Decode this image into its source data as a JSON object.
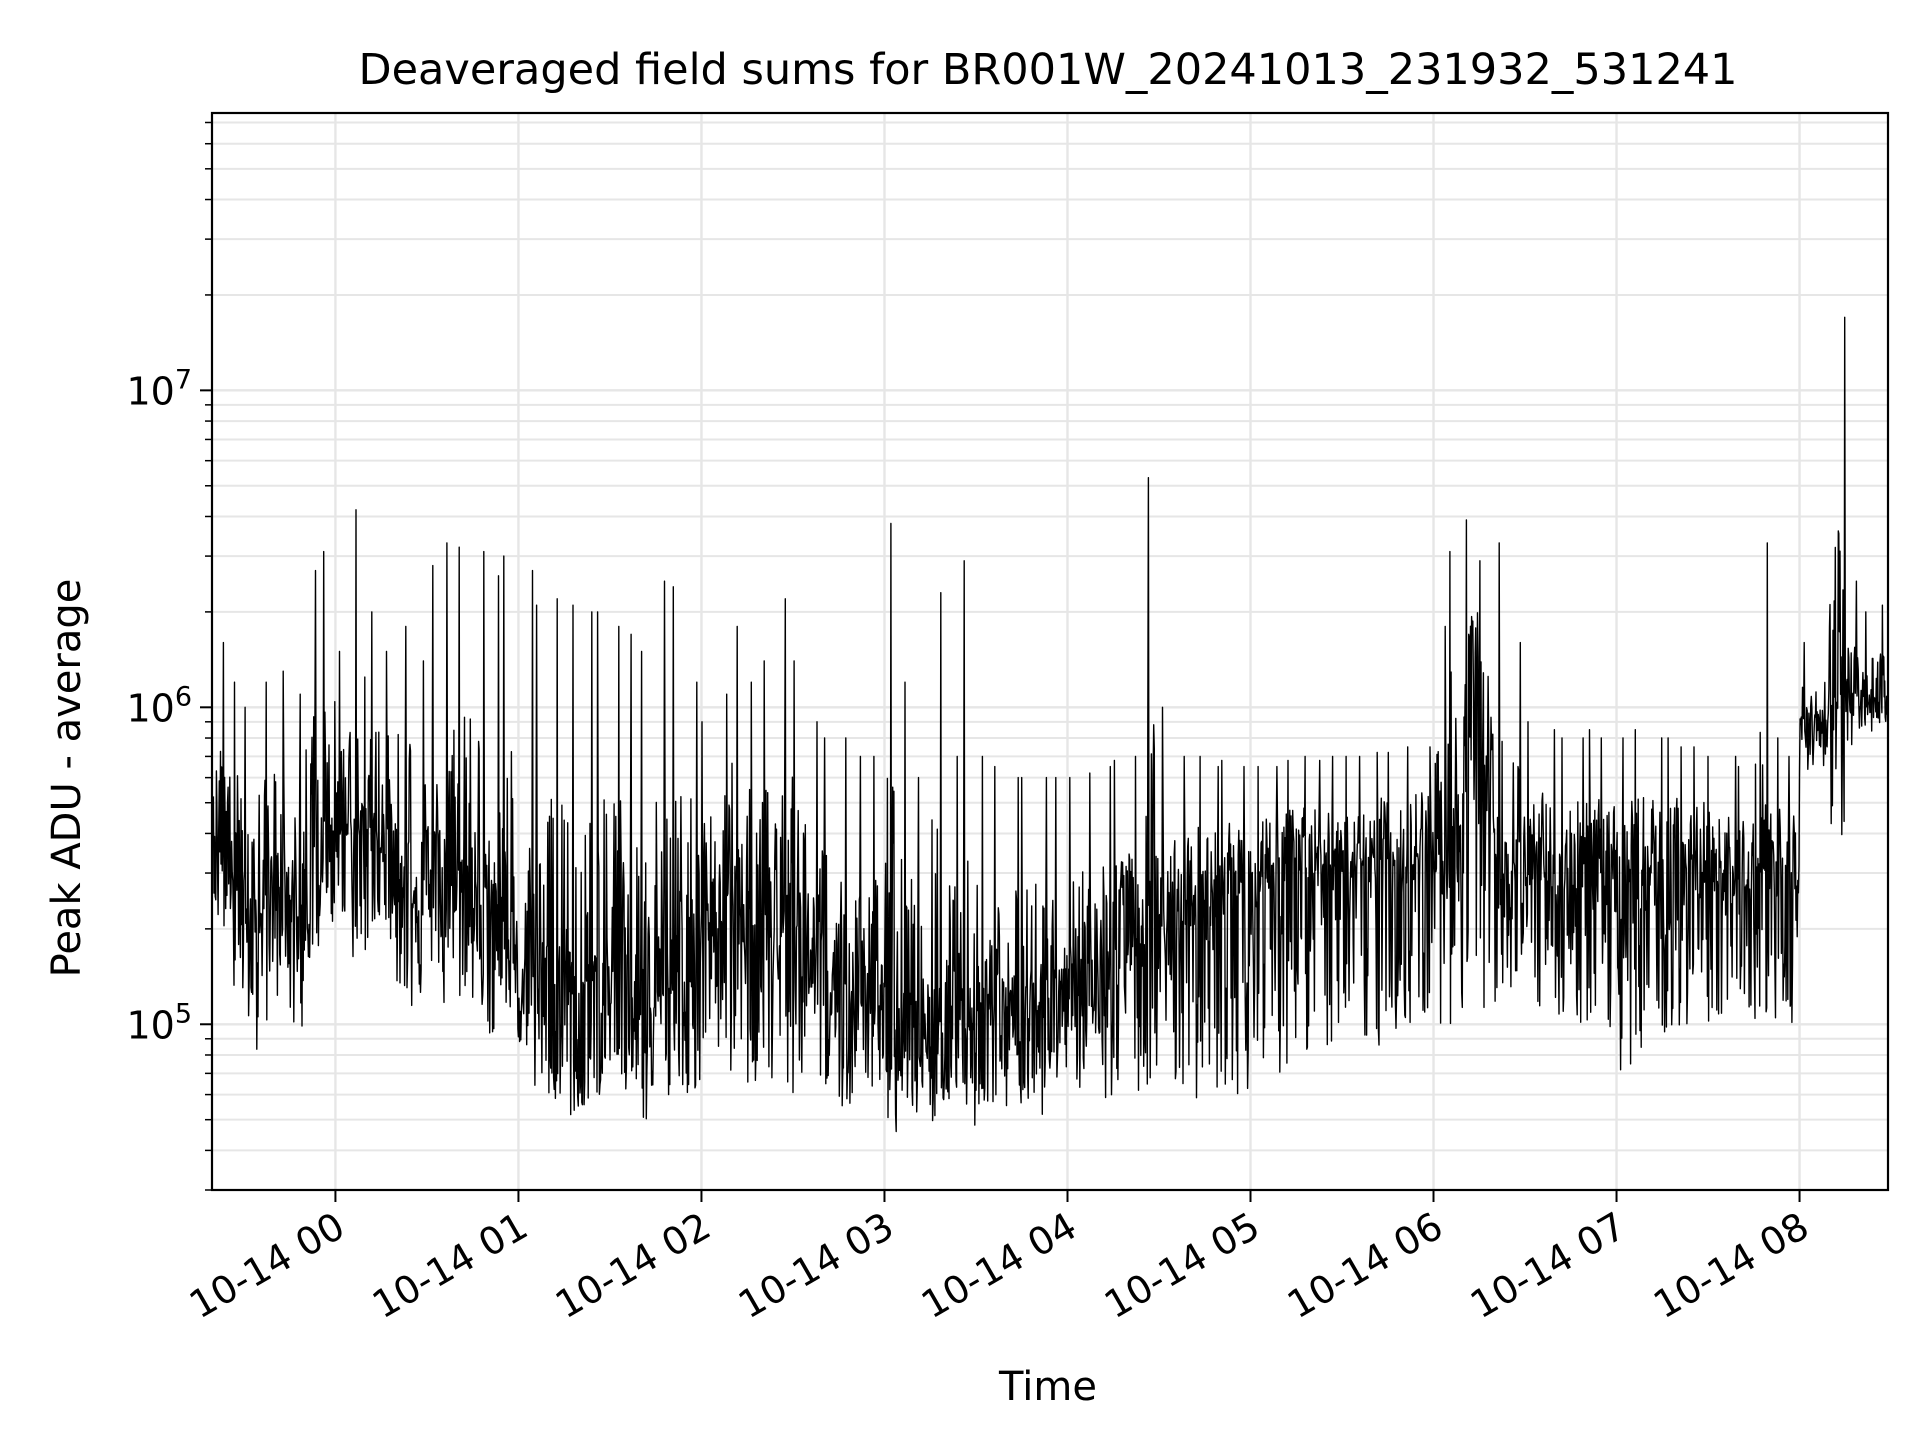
{
  "chart_data": {
    "type": "line",
    "title": "Deaveraged field sums for BR001W_20241013_231932_531241",
    "xlabel": "Time",
    "ylabel": "Peak ADU - average",
    "yscale": "log",
    "grid": true,
    "legend": "none",
    "line_color": "#000000",
    "grid_color": "#e6e6e6",
    "xlim": [
      "2024-10-13T23:19:32",
      "2024-10-14T08:29:00"
    ],
    "ylim": [
      30000,
      75000000
    ],
    "x_ticks": [
      {
        "t": "2024-10-14T00:00",
        "label": "10-14 00"
      },
      {
        "t": "2024-10-14T01:00",
        "label": "10-14 01"
      },
      {
        "t": "2024-10-14T02:00",
        "label": "10-14 02"
      },
      {
        "t": "2024-10-14T03:00",
        "label": "10-14 03"
      },
      {
        "t": "2024-10-14T04:00",
        "label": "10-14 04"
      },
      {
        "t": "2024-10-14T05:00",
        "label": "10-14 05"
      },
      {
        "t": "2024-10-14T06:00",
        "label": "10-14 06"
      },
      {
        "t": "2024-10-14T07:00",
        "label": "10-14 07"
      },
      {
        "t": "2024-10-14T08:00",
        "label": "10-14 08"
      }
    ],
    "y_ticks": [
      {
        "value": 100000,
        "base": "10",
        "exp": "5"
      },
      {
        "value": 1000000,
        "base": "10",
        "exp": "6"
      },
      {
        "value": 10000000,
        "base": "10",
        "exp": "7"
      }
    ],
    "series": [
      {
        "x": [
          "2024-10-13T23:20",
          "2024-10-13T23:25",
          "2024-10-13T23:30",
          "2024-10-13T23:35",
          "2024-10-13T23:40",
          "2024-10-13T23:45",
          "2024-10-13T23:50",
          "2024-10-13T23:55",
          "2024-10-14T00:00",
          "2024-10-14T00:05",
          "2024-10-14T00:10",
          "2024-10-14T00:15",
          "2024-10-14T00:20",
          "2024-10-14T00:25",
          "2024-10-14T00:30",
          "2024-10-14T00:35",
          "2024-10-14T00:40",
          "2024-10-14T00:45",
          "2024-10-14T00:50",
          "2024-10-14T00:55",
          "2024-10-14T01:00",
          "2024-10-14T01:05",
          "2024-10-14T01:10",
          "2024-10-14T01:15",
          "2024-10-14T01:20",
          "2024-10-14T01:25",
          "2024-10-14T01:30",
          "2024-10-14T01:35",
          "2024-10-14T01:40",
          "2024-10-14T01:45",
          "2024-10-14T01:50",
          "2024-10-14T01:55",
          "2024-10-14T02:00",
          "2024-10-14T02:05",
          "2024-10-14T02:10",
          "2024-10-14T02:15",
          "2024-10-14T02:20",
          "2024-10-14T02:25",
          "2024-10-14T02:30",
          "2024-10-14T02:35",
          "2024-10-14T02:40",
          "2024-10-14T02:45",
          "2024-10-14T02:50",
          "2024-10-14T02:55",
          "2024-10-14T03:00",
          "2024-10-14T03:05",
          "2024-10-14T03:10",
          "2024-10-14T03:15",
          "2024-10-14T03:20",
          "2024-10-14T03:25",
          "2024-10-14T03:30",
          "2024-10-14T03:35",
          "2024-10-14T03:40",
          "2024-10-14T03:45",
          "2024-10-14T03:50",
          "2024-10-14T03:55",
          "2024-10-14T04:00",
          "2024-10-14T04:05",
          "2024-10-14T04:10",
          "2024-10-14T04:15",
          "2024-10-14T04:20",
          "2024-10-14T04:25",
          "2024-10-14T04:30",
          "2024-10-14T04:35",
          "2024-10-14T04:40",
          "2024-10-14T04:45",
          "2024-10-14T04:50",
          "2024-10-14T04:55",
          "2024-10-14T05:00",
          "2024-10-14T05:05",
          "2024-10-14T05:10",
          "2024-10-14T05:15",
          "2024-10-14T05:20",
          "2024-10-14T05:25",
          "2024-10-14T05:30",
          "2024-10-14T05:35",
          "2024-10-14T05:40",
          "2024-10-14T05:45",
          "2024-10-14T05:50",
          "2024-10-14T05:55",
          "2024-10-14T06:00",
          "2024-10-14T06:05",
          "2024-10-14T06:10",
          "2024-10-14T06:15",
          "2024-10-14T06:20",
          "2024-10-14T06:25",
          "2024-10-14T06:30",
          "2024-10-14T06:35",
          "2024-10-14T06:40",
          "2024-10-14T06:45",
          "2024-10-14T06:50",
          "2024-10-14T06:55",
          "2024-10-14T07:00",
          "2024-10-14T07:05",
          "2024-10-14T07:10",
          "2024-10-14T07:15",
          "2024-10-14T07:20",
          "2024-10-14T07:25",
          "2024-10-14T07:30",
          "2024-10-14T07:35",
          "2024-10-14T07:40",
          "2024-10-14T07:45",
          "2024-10-14T07:50",
          "2024-10-14T07:55",
          "2024-10-14T08:00",
          "2024-10-14T08:05",
          "2024-10-14T08:10",
          "2024-10-14T08:15",
          "2024-10-14T08:20",
          "2024-10-14T08:25"
        ],
        "low": [
          200000,
          110000,
          80000,
          100000,
          120000,
          90000,
          160000,
          200000,
          220000,
          150000,
          170000,
          180000,
          120000,
          110000,
          140000,
          100000,
          120000,
          110000,
          90000,
          100000,
          80000,
          60000,
          55000,
          50000,
          55000,
          60000,
          60000,
          55000,
          50000,
          55000,
          60000,
          60000,
          70000,
          65000,
          70000,
          60000,
          65000,
          60000,
          60000,
          55000,
          50000,
          55000,
          65000,
          60000,
          60000,
          55000,
          50000,
          50000,
          55000,
          60000,
          55000,
          55000,
          55000,
          55000,
          52000,
          55000,
          55000,
          55000,
          55000,
          55000,
          60000,
          55000,
          55000,
          55000,
          50000,
          60000,
          60000,
          60000,
          75000,
          70000,
          75000,
          80000,
          75000,
          80000,
          85000,
          80000,
          85000,
          90000,
          95000,
          95000,
          95000,
          100000,
          120000,
          110000,
          110000,
          110000,
          100000,
          105000,
          105000,
          100000,
          95000,
          90000,
          60000,
          80000,
          90000,
          90000,
          95000,
          100000,
          95000,
          90000,
          90000,
          100000,
          100000,
          90000,
          600000,
          650000,
          800000,
          850000,
          850000,
          900000
        ],
        "mid": [
          450000,
          380000,
          320000,
          340000,
          380000,
          330000,
          400000,
          480000,
          550000,
          500000,
          520000,
          500000,
          450000,
          380000,
          420000,
          400000,
          420000,
          380000,
          300000,
          280000,
          250000,
          200000,
          180000,
          170000,
          160000,
          170000,
          180000,
          170000,
          170000,
          190000,
          220000,
          260000,
          300000,
          320000,
          340000,
          330000,
          320000,
          300000,
          260000,
          220000,
          180000,
          170000,
          160000,
          150000,
          140000,
          130000,
          130000,
          130000,
          135000,
          140000,
          140000,
          140000,
          145000,
          150000,
          150000,
          150000,
          160000,
          170000,
          180000,
          200000,
          230000,
          250000,
          270000,
          280000,
          290000,
          300000,
          320000,
          330000,
          340000,
          350000,
          360000,
          360000,
          370000,
          380000,
          380000,
          390000,
          400000,
          400000,
          410000,
          420000,
          430000,
          700000,
          1200000,
          800000,
          420000,
          400000,
          380000,
          380000,
          370000,
          370000,
          380000,
          380000,
          370000,
          360000,
          360000,
          360000,
          360000,
          360000,
          350000,
          340000,
          350000,
          330000,
          340000,
          350000,
          900000,
          1000000,
          1100000,
          1100000,
          1100000,
          1150000
        ],
        "high": [
          1600000,
          1200000,
          1000000,
          1200000,
          1300000,
          1100000,
          2700000,
          3100000,
          1500000,
          4200000,
          2000000,
          1500000,
          1800000,
          1400000,
          2800000,
          3300000,
          3200000,
          3100000,
          2600000,
          3000000,
          2700000,
          2100000,
          2200000,
          2100000,
          2000000,
          2000000,
          1800000,
          1700000,
          1500000,
          2500000,
          2400000,
          1200000,
          900000,
          1100000,
          1800000,
          1200000,
          1400000,
          2200000,
          1400000,
          900000,
          800000,
          800000,
          700000,
          700000,
          3800000,
          1200000,
          600000,
          2300000,
          700000,
          2900000,
          700000,
          650000,
          600000,
          600000,
          600000,
          600000,
          600000,
          620000,
          650000,
          680000,
          700000,
          5300000,
          1000000,
          700000,
          700000,
          650000,
          680000,
          650000,
          650000,
          650000,
          680000,
          700000,
          680000,
          700000,
          700000,
          700000,
          720000,
          720000,
          750000,
          750000,
          1800000,
          3100000,
          3900000,
          2900000,
          3300000,
          1600000,
          900000,
          850000,
          800000,
          800000,
          850000,
          800000,
          800000,
          850000,
          800000,
          800000,
          750000,
          750000,
          700000,
          700000,
          650000,
          3300000,
          800000,
          700000,
          1600000,
          1800000,
          17000000,
          2500000,
          2000000,
          2100000
        ]
      }
    ]
  }
}
